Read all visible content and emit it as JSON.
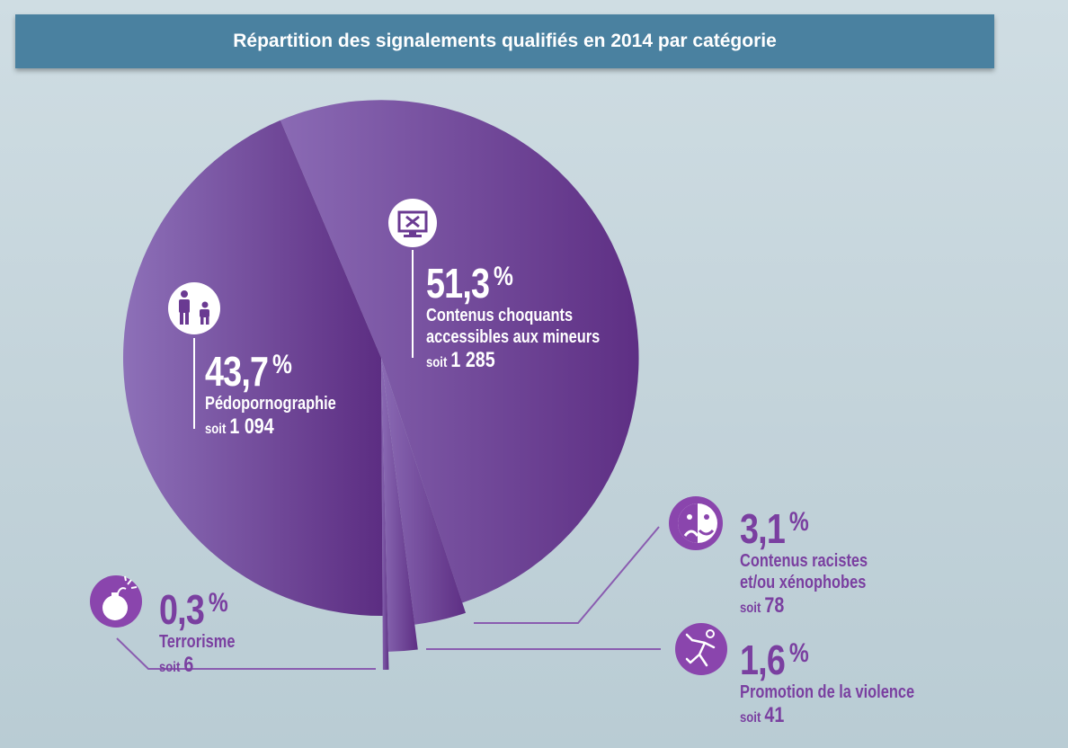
{
  "title": "Répartition des signalements qualifiés en 2014 par catégorie",
  "colors": {
    "slice_dark": "#5e2f84",
    "slice_light": "#8a6ab4",
    "label_purple": "#7a3fa0",
    "title_bg": "#4a81a0"
  },
  "chart_data": {
    "type": "pie",
    "title": "Répartition des signalements qualifiés en 2014 par catégorie",
    "slices": [
      {
        "key": "contenus",
        "label": "Contenus choquants accessibles aux mineurs",
        "label_line1": "Contenus choquants",
        "label_line2": "accessibles aux mineurs",
        "percent": 51.3,
        "percent_text": "51,3",
        "count": 1285,
        "count_text": "1 285",
        "icon": "monitor-x-icon"
      },
      {
        "key": "racistes",
        "label": "Contenus racistes et/ou xénophobes",
        "label_line1": "Contenus racistes",
        "label_line2": "et/ou xénophobes",
        "percent": 3.1,
        "percent_text": "3,1",
        "count": 78,
        "count_text": "78",
        "icon": "comedy-mask-icon"
      },
      {
        "key": "violence",
        "label": "Promotion de la violence",
        "percent": 1.6,
        "percent_text": "1,6",
        "count": 41,
        "count_text": "41",
        "icon": "violence-figure-icon"
      },
      {
        "key": "terrorisme",
        "label": "Terrorisme",
        "percent": 0.3,
        "percent_text": "0,3",
        "count": 6,
        "count_text": "6",
        "icon": "bomb-icon"
      },
      {
        "key": "pedo",
        "label": "Pédopornographie",
        "percent": 43.7,
        "percent_text": "43,7",
        "count": 1094,
        "count_text": "1 094",
        "icon": "adult-child-icon"
      }
    ],
    "percent_symbol": "%",
    "count_prefix": "soit"
  }
}
